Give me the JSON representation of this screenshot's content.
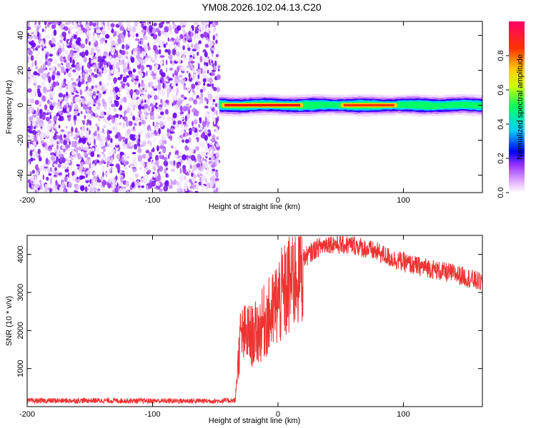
{
  "title": "YM08.2026.102.04.13.C20",
  "chart_data": [
    {
      "type": "heatmap",
      "name": "spectrogram",
      "xlabel": "Height of straight line (km)",
      "ylabel": "Frequency (Hz)",
      "xlim": [
        -200,
        163
      ],
      "ylim": [
        -50,
        48
      ],
      "x_ticks": [
        -200,
        -100,
        0,
        100
      ],
      "x_tick_labels": [
        "-200",
        "-100",
        "0",
        "100"
      ],
      "y_ticks": [
        -40,
        -20,
        0,
        20,
        40
      ],
      "y_tick_labels": [
        "-40",
        "-20",
        "0",
        "20",
        "40"
      ],
      "noise_region_x": [
        -200,
        -47
      ],
      "signal_band": {
        "x_start": -47,
        "x_end": 163,
        "center_freq_hz": 0,
        "half_width_hz": 3,
        "peak_segments": [
          {
            "x0": -45,
            "x1": 20,
            "amplitude": 1.0
          },
          {
            "x0": 50,
            "x1": 95,
            "amplitude": 0.85
          }
        ]
      },
      "colorbar": {
        "label": "Normalized spectral amplitude",
        "range": [
          0,
          1
        ],
        "ticks": [
          0,
          0.2,
          0.4,
          0.6,
          0.8
        ],
        "tick_labels": [
          "0.0",
          "0.2",
          "0.4",
          "0.6",
          "0.8"
        ]
      },
      "colormap": [
        "#ffffff",
        "#cc66ff",
        "#0000ff",
        "#00ccff",
        "#00ff66",
        "#ffff00",
        "#ff9900",
        "#ff0000",
        "#ff0066"
      ]
    },
    {
      "type": "line",
      "name": "snr",
      "xlabel": "Height of straight line (km)",
      "ylabel": "SNR (10 * v/v)",
      "xlim": [
        -200,
        163
      ],
      "ylim": [
        0,
        4500
      ],
      "x_ticks": [
        -200,
        -100,
        0,
        100
      ],
      "x_tick_labels": [
        "-200",
        "-100",
        "0",
        "100"
      ],
      "y_ticks": [
        1000,
        2000,
        3000,
        4000
      ],
      "y_tick_labels": [
        "1000",
        "2000",
        "3000",
        "4000"
      ],
      "series": [
        {
          "name": "SNR",
          "color": "#ee3333",
          "x": [
            -200,
            -150,
            -100,
            -50,
            -34,
            -33,
            -30,
            -25,
            -20,
            -15,
            -10,
            -5,
            0,
            5,
            10,
            15,
            20,
            25,
            30,
            40,
            50,
            60,
            70,
            80,
            90,
            100,
            110,
            120,
            130,
            140,
            150,
            163
          ],
          "y": [
            150,
            160,
            150,
            150,
            160,
            700,
            1800,
            1900,
            1850,
            2000,
            2300,
            2400,
            2800,
            2950,
            3250,
            3600,
            3900,
            4000,
            4150,
            4300,
            4250,
            4250,
            4150,
            4050,
            3900,
            3800,
            3700,
            3650,
            3550,
            3500,
            3400,
            3250
          ]
        }
      ]
    }
  ]
}
